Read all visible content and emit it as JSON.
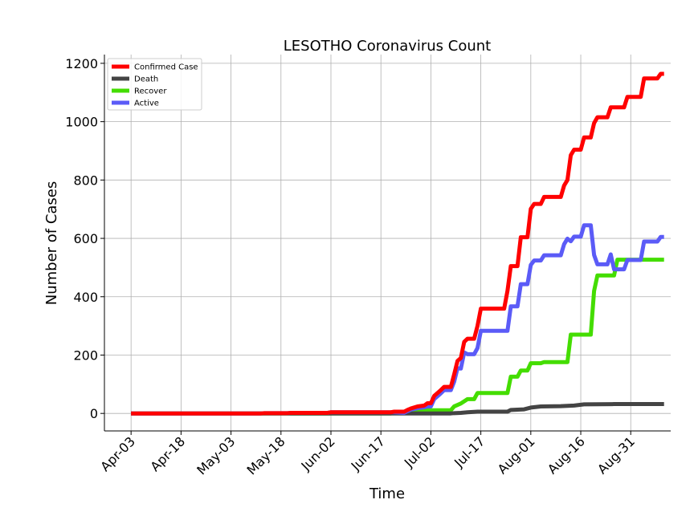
{
  "chart_data": {
    "type": "line",
    "title": "LESOTHO Coronavirus Count",
    "xlabel": "Time",
    "ylabel": "Number of Cases",
    "x_ticks": [
      "Apr-03",
      "Apr-18",
      "May-03",
      "May-18",
      "Jun-02",
      "Jun-17",
      "Jul-02",
      "Jul-17",
      "Aug-01",
      "Aug-16",
      "Aug-31"
    ],
    "y_ticks": [
      0,
      200,
      400,
      600,
      800,
      1000,
      1200
    ],
    "xlim": [
      "2020-03-26",
      "2020-09-12"
    ],
    "ylim": [
      -60,
      1230
    ],
    "grid": true,
    "legend": "top-left",
    "series": [
      {
        "name": "Confirmed Case",
        "color": "#ff0000",
        "points": [
          [
            "2020-04-03",
            0
          ],
          [
            "2020-05-12",
            0
          ],
          [
            "2020-05-13",
            1
          ],
          [
            "2020-05-20",
            1
          ],
          [
            "2020-05-21",
            2
          ],
          [
            "2020-06-01",
            2
          ],
          [
            "2020-06-02",
            4
          ],
          [
            "2020-06-20",
            4
          ],
          [
            "2020-06-21",
            6
          ],
          [
            "2020-06-24",
            6
          ],
          [
            "2020-06-25",
            12
          ],
          [
            "2020-06-26",
            17
          ],
          [
            "2020-06-28",
            24
          ],
          [
            "2020-06-30",
            27
          ],
          [
            "2020-07-01",
            35
          ],
          [
            "2020-07-02",
            35
          ],
          [
            "2020-07-03",
            60
          ],
          [
            "2020-07-04",
            70
          ],
          [
            "2020-07-05",
            80
          ],
          [
            "2020-07-06",
            91
          ],
          [
            "2020-07-08",
            91
          ],
          [
            "2020-07-09",
            134
          ],
          [
            "2020-07-10",
            180
          ],
          [
            "2020-07-11",
            190
          ],
          [
            "2020-07-12",
            245
          ],
          [
            "2020-07-13",
            256
          ],
          [
            "2020-07-15",
            256
          ],
          [
            "2020-07-16",
            300
          ],
          [
            "2020-07-17",
            359
          ],
          [
            "2020-07-24",
            359
          ],
          [
            "2020-07-25",
            420
          ],
          [
            "2020-07-26",
            505
          ],
          [
            "2020-07-28",
            505
          ],
          [
            "2020-07-29",
            604
          ],
          [
            "2020-07-31",
            604
          ],
          [
            "2020-08-01",
            701
          ],
          [
            "2020-08-02",
            718
          ],
          [
            "2020-08-04",
            718
          ],
          [
            "2020-08-05",
            742
          ],
          [
            "2020-08-10",
            742
          ],
          [
            "2020-08-11",
            781
          ],
          [
            "2020-08-12",
            800
          ],
          [
            "2020-08-13",
            885
          ],
          [
            "2020-08-14",
            904
          ],
          [
            "2020-08-16",
            904
          ],
          [
            "2020-08-17",
            946
          ],
          [
            "2020-08-19",
            946
          ],
          [
            "2020-08-20",
            995
          ],
          [
            "2020-08-21",
            1015
          ],
          [
            "2020-08-24",
            1015
          ],
          [
            "2020-08-25",
            1049
          ],
          [
            "2020-08-29",
            1049
          ],
          [
            "2020-08-30",
            1085
          ],
          [
            "2020-09-03",
            1085
          ],
          [
            "2020-09-04",
            1148
          ],
          [
            "2020-09-08",
            1148
          ],
          [
            "2020-09-09",
            1164
          ],
          [
            "2020-09-10",
            1164
          ]
        ]
      },
      {
        "name": "Death",
        "color": "#444444",
        "points": [
          [
            "2020-04-03",
            0
          ],
          [
            "2020-07-08",
            0
          ],
          [
            "2020-07-09",
            1
          ],
          [
            "2020-07-11",
            2
          ],
          [
            "2020-07-13",
            4
          ],
          [
            "2020-07-16",
            6
          ],
          [
            "2020-07-25",
            6
          ],
          [
            "2020-07-26",
            12
          ],
          [
            "2020-07-30",
            14
          ],
          [
            "2020-08-01",
            20
          ],
          [
            "2020-08-04",
            24
          ],
          [
            "2020-08-10",
            25
          ],
          [
            "2020-08-14",
            27
          ],
          [
            "2020-08-17",
            31
          ],
          [
            "2020-08-26",
            32
          ],
          [
            "2020-09-10",
            32
          ]
        ]
      },
      {
        "name": "Recover",
        "color": "#44dd00",
        "points": [
          [
            "2020-04-03",
            0
          ],
          [
            "2020-06-20",
            0
          ],
          [
            "2020-06-21",
            2
          ],
          [
            "2020-06-24",
            4
          ],
          [
            "2020-06-28",
            6
          ],
          [
            "2020-07-01",
            11
          ],
          [
            "2020-07-08",
            11
          ],
          [
            "2020-07-09",
            24
          ],
          [
            "2020-07-11",
            34
          ],
          [
            "2020-07-13",
            49
          ],
          [
            "2020-07-15",
            49
          ],
          [
            "2020-07-16",
            70
          ],
          [
            "2020-07-25",
            70
          ],
          [
            "2020-07-26",
            126
          ],
          [
            "2020-07-28",
            126
          ],
          [
            "2020-07-29",
            147
          ],
          [
            "2020-07-31",
            147
          ],
          [
            "2020-08-01",
            172
          ],
          [
            "2020-08-04",
            172
          ],
          [
            "2020-08-05",
            176
          ],
          [
            "2020-08-12",
            176
          ],
          [
            "2020-08-13",
            270
          ],
          [
            "2020-08-19",
            270
          ],
          [
            "2020-08-20",
            420
          ],
          [
            "2020-08-21",
            473
          ],
          [
            "2020-08-26",
            473
          ],
          [
            "2020-08-27",
            527
          ],
          [
            "2020-09-10",
            527
          ]
        ]
      },
      {
        "name": "Active",
        "color": "#5b5bf7",
        "points": [
          [
            "2020-04-03",
            0
          ],
          [
            "2020-05-12",
            0
          ],
          [
            "2020-05-13",
            1
          ],
          [
            "2020-05-20",
            1
          ],
          [
            "2020-05-21",
            2
          ],
          [
            "2020-06-01",
            2
          ],
          [
            "2020-06-02",
            4
          ],
          [
            "2020-06-20",
            4
          ],
          [
            "2020-06-21",
            4
          ],
          [
            "2020-06-24",
            2
          ],
          [
            "2020-06-25",
            8
          ],
          [
            "2020-06-26",
            13
          ],
          [
            "2020-06-28",
            18
          ],
          [
            "2020-06-30",
            21
          ],
          [
            "2020-07-01",
            24
          ],
          [
            "2020-07-02",
            24
          ],
          [
            "2020-07-03",
            49
          ],
          [
            "2020-07-04",
            59
          ],
          [
            "2020-07-05",
            69
          ],
          [
            "2020-07-06",
            80
          ],
          [
            "2020-07-08",
            80
          ],
          [
            "2020-07-09",
            109
          ],
          [
            "2020-07-10",
            155
          ],
          [
            "2020-07-11",
            154
          ],
          [
            "2020-07-12",
            209
          ],
          [
            "2020-07-13",
            203
          ],
          [
            "2020-07-15",
            203
          ],
          [
            "2020-07-16",
            224
          ],
          [
            "2020-07-17",
            283
          ],
          [
            "2020-07-25",
            283
          ],
          [
            "2020-07-26",
            367
          ],
          [
            "2020-07-28",
            367
          ],
          [
            "2020-07-29",
            443
          ],
          [
            "2020-07-31",
            443
          ],
          [
            "2020-08-01",
            509
          ],
          [
            "2020-08-02",
            524
          ],
          [
            "2020-08-04",
            524
          ],
          [
            "2020-08-05",
            542
          ],
          [
            "2020-08-10",
            542
          ],
          [
            "2020-08-11",
            580
          ],
          [
            "2020-08-12",
            599
          ],
          [
            "2020-08-13",
            590
          ],
          [
            "2020-08-14",
            606
          ],
          [
            "2020-08-16",
            606
          ],
          [
            "2020-08-17",
            645
          ],
          [
            "2020-08-19",
            645
          ],
          [
            "2020-08-20",
            543
          ],
          [
            "2020-08-21",
            511
          ],
          [
            "2020-08-24",
            511
          ],
          [
            "2020-08-25",
            545
          ],
          [
            "2020-08-26",
            494
          ],
          [
            "2020-08-29",
            494
          ],
          [
            "2020-08-30",
            526
          ],
          [
            "2020-09-03",
            526
          ],
          [
            "2020-09-04",
            589
          ],
          [
            "2020-09-08",
            589
          ],
          [
            "2020-09-09",
            605
          ],
          [
            "2020-09-10",
            605
          ]
        ]
      }
    ]
  }
}
